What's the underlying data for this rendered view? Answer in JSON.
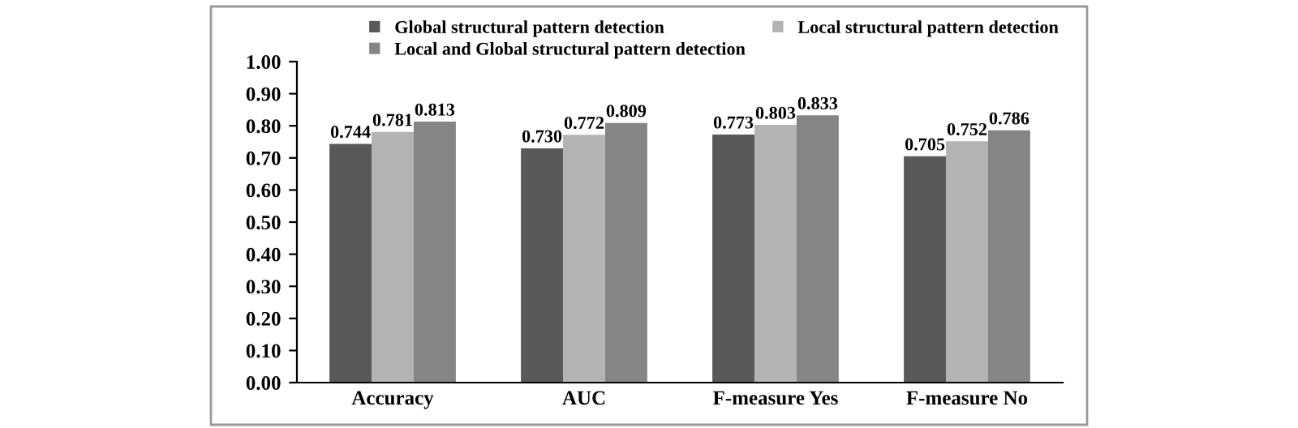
{
  "chart_data": {
    "type": "bar",
    "categories": [
      "Accuracy",
      "AUC",
      "F-measure Yes",
      "F-measure No"
    ],
    "series": [
      {
        "name": "Global structural pattern detection",
        "color": "#595959",
        "values": [
          0.744,
          0.73,
          0.773,
          0.705
        ],
        "value_labels": [
          "0.744",
          "0.730",
          "0.773",
          "0.705"
        ]
      },
      {
        "name": "Local structural pattern detection",
        "color": "#b3b3b3",
        "values": [
          0.781,
          0.772,
          0.803,
          0.752
        ],
        "value_labels": [
          "0.781",
          "0.772",
          "0.803",
          "0.752"
        ]
      },
      {
        "name": "Local and Global structural pattern detection",
        "color": "#858585",
        "values": [
          0.813,
          0.809,
          0.833,
          0.786
        ],
        "value_labels": [
          "0.813",
          "0.809",
          "0.833",
          "0.786"
        ]
      }
    ],
    "ylim": [
      0,
      1.0
    ],
    "yticks": [
      {
        "value": 0,
        "label": "0.00"
      },
      {
        "value": 0.1,
        "label": "0.10"
      },
      {
        "value": 0.2,
        "label": "0.20"
      },
      {
        "value": 0.3,
        "label": "0.30"
      },
      {
        "value": 0.4,
        "label": "0.40"
      },
      {
        "value": 0.5,
        "label": "0.50"
      },
      {
        "value": 0.6,
        "label": "0.60"
      },
      {
        "value": 0.7,
        "label": "0.70"
      },
      {
        "value": 0.8,
        "label": "0.80"
      },
      {
        "value": 0.9,
        "label": "0.90"
      },
      {
        "value": 1.0,
        "label": "1.00"
      }
    ],
    "grid": false,
    "legend": "top"
  }
}
